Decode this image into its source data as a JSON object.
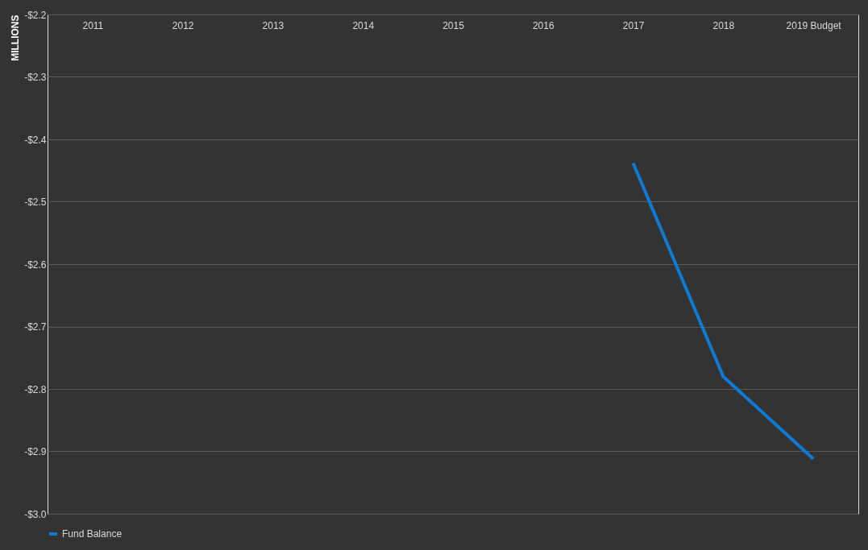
{
  "chart_data": {
    "type": "line",
    "ylabel": "MILLIONS",
    "categories": [
      "2011",
      "2012",
      "2013",
      "2014",
      "2015",
      "2016",
      "2017",
      "2018",
      "2019 Budget"
    ],
    "series": [
      {
        "name": "Fund Balance",
        "color": "#0f7ad6",
        "values": [
          null,
          null,
          null,
          null,
          null,
          null,
          -2.438,
          -2.78,
          -2.912
        ]
      }
    ],
    "ylim": [
      -3.0,
      -2.2
    ],
    "yticks": [
      {
        "value": -3.0,
        "label": "-$3.0"
      },
      {
        "value": -2.9,
        "label": "-$2.9"
      },
      {
        "value": -2.8,
        "label": "-$2.8"
      },
      {
        "value": -2.7,
        "label": "-$2.7"
      },
      {
        "value": -2.6,
        "label": "-$2.6"
      },
      {
        "value": -2.5,
        "label": "-$2.5"
      },
      {
        "value": -2.4,
        "label": "-$2.4"
      },
      {
        "value": -2.3,
        "label": "-$2.3"
      },
      {
        "value": -2.2,
        "label": "-$2.2"
      }
    ],
    "grid": "y",
    "legend": "bottom",
    "marker": "none",
    "line_style": "solid"
  }
}
